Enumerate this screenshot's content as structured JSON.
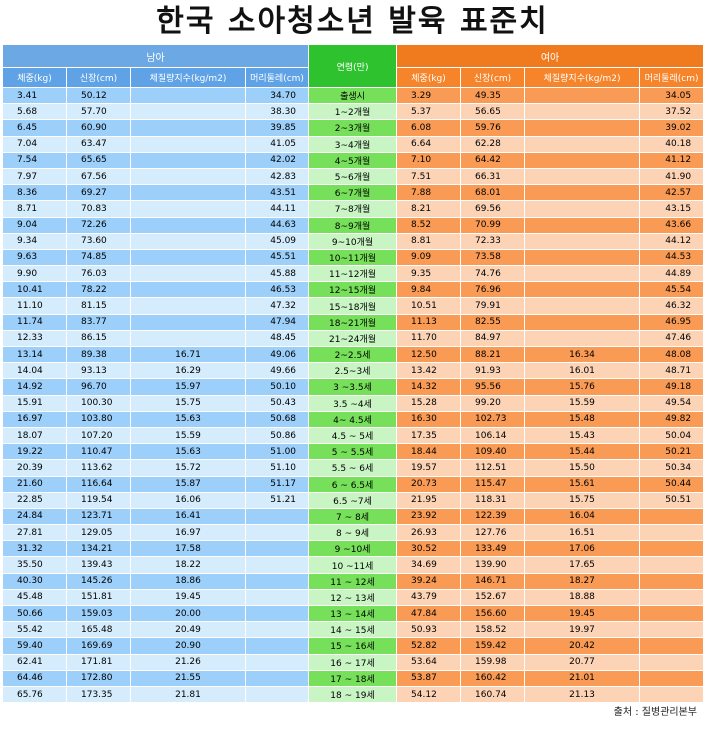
{
  "title": "한국 소아청소년 발육 표준치",
  "headers": {
    "boy": "남아",
    "age": "연령(만)",
    "girl": "여아",
    "weight": "체중(kg)",
    "height": "신장(cm)",
    "bmi": "체질량지수(kg/m2)",
    "head": "머리둘레(cm)"
  },
  "rows": [
    {
      "age": "출생시",
      "b": [
        "3.41",
        "50.12",
        "",
        "34.70"
      ],
      "g": [
        "3.29",
        "49.35",
        "",
        "34.05"
      ]
    },
    {
      "age": "1~2개월",
      "b": [
        "5.68",
        "57.70",
        "",
        "38.30"
      ],
      "g": [
        "5.37",
        "56.65",
        "",
        "37.52"
      ]
    },
    {
      "age": "2~3개월",
      "b": [
        "6.45",
        "60.90",
        "",
        "39.85"
      ],
      "g": [
        "6.08",
        "59.76",
        "",
        "39.02"
      ]
    },
    {
      "age": "3~4개월",
      "b": [
        "7.04",
        "63.47",
        "",
        "41.05"
      ],
      "g": [
        "6.64",
        "62.28",
        "",
        "40.18"
      ]
    },
    {
      "age": "4~5개월",
      "b": [
        "7.54",
        "65.65",
        "",
        "42.02"
      ],
      "g": [
        "7.10",
        "64.42",
        "",
        "41.12"
      ]
    },
    {
      "age": "5~6개월",
      "b": [
        "7.97",
        "67.56",
        "",
        "42.83"
      ],
      "g": [
        "7.51",
        "66.31",
        "",
        "41.90"
      ]
    },
    {
      "age": "6~7개월",
      "b": [
        "8.36",
        "69.27",
        "",
        "43.51"
      ],
      "g": [
        "7.88",
        "68.01",
        "",
        "42.57"
      ]
    },
    {
      "age": "7~8개월",
      "b": [
        "8.71",
        "70.83",
        "",
        "44.11"
      ],
      "g": [
        "8.21",
        "69.56",
        "",
        "43.15"
      ]
    },
    {
      "age": "8~9개월",
      "b": [
        "9.04",
        "72.26",
        "",
        "44.63"
      ],
      "g": [
        "8.52",
        "70.99",
        "",
        "43.66"
      ]
    },
    {
      "age": "9~10개월",
      "b": [
        "9.34",
        "73.60",
        "",
        "45.09"
      ],
      "g": [
        "8.81",
        "72.33",
        "",
        "44.12"
      ]
    },
    {
      "age": "10~11개월",
      "b": [
        "9.63",
        "74.85",
        "",
        "45.51"
      ],
      "g": [
        "9.09",
        "73.58",
        "",
        "44.53"
      ]
    },
    {
      "age": "11~12개월",
      "b": [
        "9.90",
        "76.03",
        "",
        "45.88"
      ],
      "g": [
        "9.35",
        "74.76",
        "",
        "44.89"
      ]
    },
    {
      "age": "12~15개월",
      "b": [
        "10.41",
        "78.22",
        "",
        "46.53"
      ],
      "g": [
        "9.84",
        "76.96",
        "",
        "45.54"
      ]
    },
    {
      "age": "15~18개월",
      "b": [
        "11.10",
        "81.15",
        "",
        "47.32"
      ],
      "g": [
        "10.51",
        "79.91",
        "",
        "46.32"
      ]
    },
    {
      "age": "18~21개월",
      "b": [
        "11.74",
        "83.77",
        "",
        "47.94"
      ],
      "g": [
        "11.13",
        "82.55",
        "",
        "46.95"
      ]
    },
    {
      "age": "21~24개월",
      "b": [
        "12.33",
        "86.15",
        "",
        "48.45"
      ],
      "g": [
        "11.70",
        "84.97",
        "",
        "47.46"
      ]
    },
    {
      "age": "2~2.5세",
      "b": [
        "13.14",
        "89.38",
        "16.71",
        "49.06"
      ],
      "g": [
        "12.50",
        "88.21",
        "16.34",
        "48.08"
      ]
    },
    {
      "age": "2.5~3세",
      "b": [
        "14.04",
        "93.13",
        "16.29",
        "49.66"
      ],
      "g": [
        "13.42",
        "91.93",
        "16.01",
        "48.71"
      ]
    },
    {
      "age": "3 ~3.5세",
      "b": [
        "14.92",
        "96.70",
        "15.97",
        "50.10"
      ],
      "g": [
        "14.32",
        "95.56",
        "15.76",
        "49.18"
      ]
    },
    {
      "age": "3.5 ~4세",
      "b": [
        "15.91",
        "100.30",
        "15.75",
        "50.43"
      ],
      "g": [
        "15.28",
        "99.20",
        "15.59",
        "49.54"
      ]
    },
    {
      "age": "4~ 4.5세",
      "b": [
        "16.97",
        "103.80",
        "15.63",
        "50.68"
      ],
      "g": [
        "16.30",
        "102.73",
        "15.48",
        "49.82"
      ]
    },
    {
      "age": "4.5 ~ 5세",
      "b": [
        "18.07",
        "107.20",
        "15.59",
        "50.86"
      ],
      "g": [
        "17.35",
        "106.14",
        "15.43",
        "50.04"
      ]
    },
    {
      "age": "5 ~ 5.5세",
      "b": [
        "19.22",
        "110.47",
        "15.63",
        "51.00"
      ],
      "g": [
        "18.44",
        "109.40",
        "15.44",
        "50.21"
      ]
    },
    {
      "age": "5.5 ~ 6세",
      "b": [
        "20.39",
        "113.62",
        "15.72",
        "51.10"
      ],
      "g": [
        "19.57",
        "112.51",
        "15.50",
        "50.34"
      ]
    },
    {
      "age": "6 ~ 6.5세",
      "b": [
        "21.60",
        "116.64",
        "15.87",
        "51.17"
      ],
      "g": [
        "20.73",
        "115.47",
        "15.61",
        "50.44"
      ]
    },
    {
      "age": "6.5 ~7세",
      "b": [
        "22.85",
        "119.54",
        "16.06",
        "51.21"
      ],
      "g": [
        "21.95",
        "118.31",
        "15.75",
        "50.51"
      ]
    },
    {
      "age": "7 ~ 8세",
      "b": [
        "24.84",
        "123.71",
        "16.41",
        ""
      ],
      "g": [
        "23.92",
        "122.39",
        "16.04",
        ""
      ]
    },
    {
      "age": "8 ~ 9세",
      "b": [
        "27.81",
        "129.05",
        "16.97",
        ""
      ],
      "g": [
        "26.93",
        "127.76",
        "16.51",
        ""
      ]
    },
    {
      "age": "9 ~10세",
      "b": [
        "31.32",
        "134.21",
        "17.58",
        ""
      ],
      "g": [
        "30.52",
        "133.49",
        "17.06",
        ""
      ]
    },
    {
      "age": "10 ~11세",
      "b": [
        "35.50",
        "139.43",
        "18.22",
        ""
      ],
      "g": [
        "34.69",
        "139.90",
        "17.65",
        ""
      ]
    },
    {
      "age": "11 ~ 12세",
      "b": [
        "40.30",
        "145.26",
        "18.86",
        ""
      ],
      "g": [
        "39.24",
        "146.71",
        "18.27",
        ""
      ]
    },
    {
      "age": "12 ~ 13세",
      "b": [
        "45.48",
        "151.81",
        "19.45",
        ""
      ],
      "g": [
        "43.79",
        "152.67",
        "18.88",
        ""
      ]
    },
    {
      "age": "13 ~ 14세",
      "b": [
        "50.66",
        "159.03",
        "20.00",
        ""
      ],
      "g": [
        "47.84",
        "156.60",
        "19.45",
        ""
      ]
    },
    {
      "age": "14 ~ 15세",
      "b": [
        "55.42",
        "165.48",
        "20.49",
        ""
      ],
      "g": [
        "50.93",
        "158.52",
        "19.97",
        ""
      ]
    },
    {
      "age": "15 ~ 16세",
      "b": [
        "59.40",
        "169.69",
        "20.90",
        ""
      ],
      "g": [
        "52.82",
        "159.42",
        "20.42",
        ""
      ]
    },
    {
      "age": "16 ~ 17세",
      "b": [
        "62.41",
        "171.81",
        "21.26",
        ""
      ],
      "g": [
        "53.64",
        "159.98",
        "20.77",
        ""
      ]
    },
    {
      "age": "17 ~ 18세",
      "b": [
        "64.46",
        "172.80",
        "21.55",
        ""
      ],
      "g": [
        "53.87",
        "160.42",
        "21.01",
        ""
      ]
    },
    {
      "age": "18 ~ 19세",
      "b": [
        "65.76",
        "173.35",
        "21.81",
        ""
      ],
      "g": [
        "54.12",
        "160.74",
        "21.13",
        ""
      ]
    }
  ],
  "source": "출처 : 질병관리본부"
}
